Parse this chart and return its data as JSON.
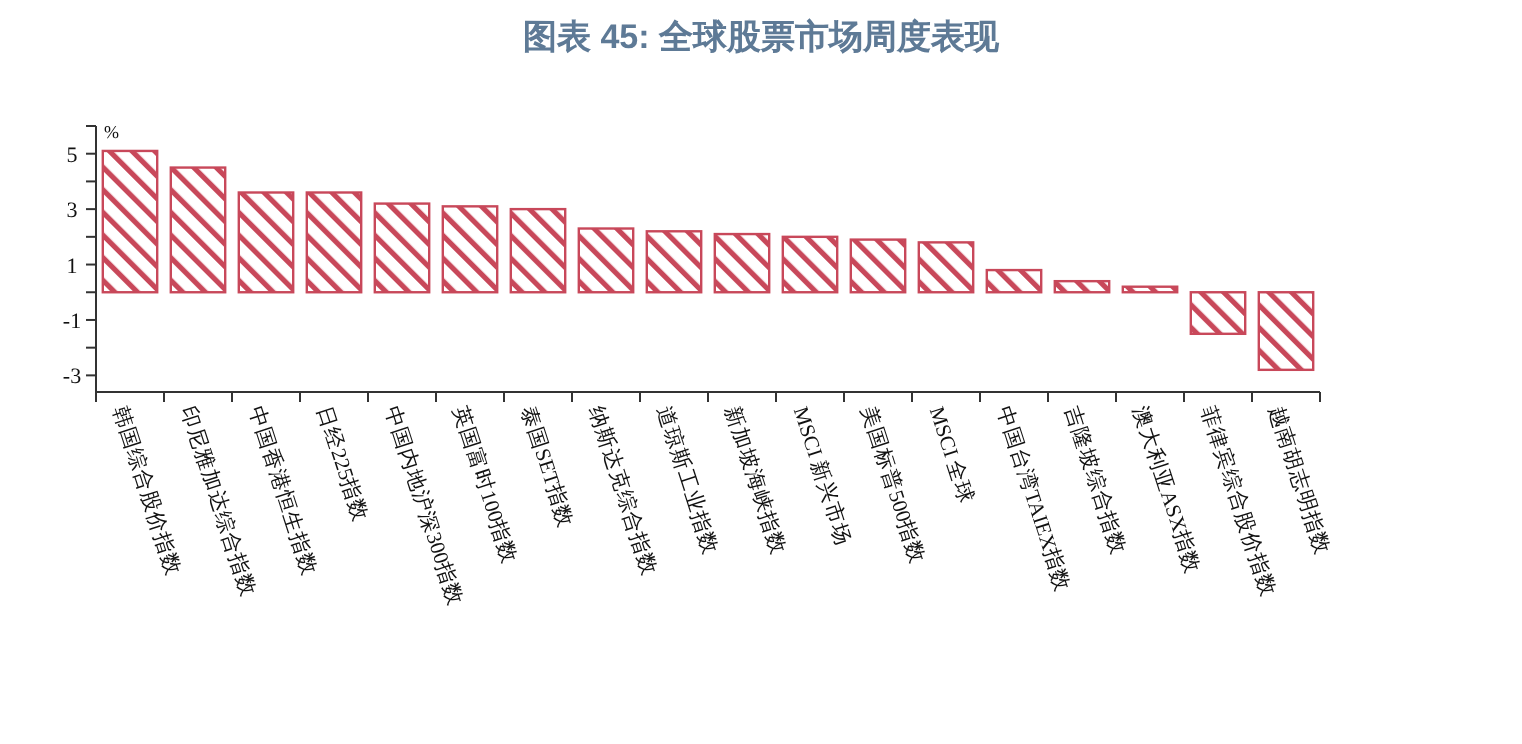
{
  "chart_data": {
    "type": "bar",
    "title": "图表 45: 全球股票市场周度表现",
    "ylabel": "%",
    "categories": [
      "韩国综合股价指数",
      "印尼雅加达综合指数",
      "中国香港恒生指数",
      "日经225指数",
      "中国内地沪深300指数",
      "英国富时100指数",
      "泰国SET指数",
      "纳斯达克综合指数",
      "道琼斯工业指数",
      "新加坡海峡指数",
      "MSCI 新兴市场",
      "美国标普500指数",
      "MSCI 全球",
      "中国台湾TAIEX指数",
      "吉隆坡综合指数",
      "澳大利亚ASX指数",
      "菲律宾综合股价指数",
      "越南胡志明指数"
    ],
    "values": [
      5.1,
      4.5,
      3.6,
      3.6,
      3.2,
      3.1,
      3.0,
      2.3,
      2.2,
      2.1,
      2.0,
      1.9,
      1.8,
      0.8,
      0.4,
      0.2,
      -1.5,
      -2.8
    ],
    "color": "#c8485a",
    "ylim": [
      -3.6,
      6
    ],
    "yticks": [
      -3,
      {
        "value": -2,
        "label": null
      },
      -1,
      {
        "value": 0,
        "label": null
      },
      1,
      {
        "value": 2,
        "label": null
      },
      3,
      {
        "value": 4,
        "label": null
      },
      5,
      {
        "value": 6,
        "label": null
      }
    ],
    "grid": false
  }
}
